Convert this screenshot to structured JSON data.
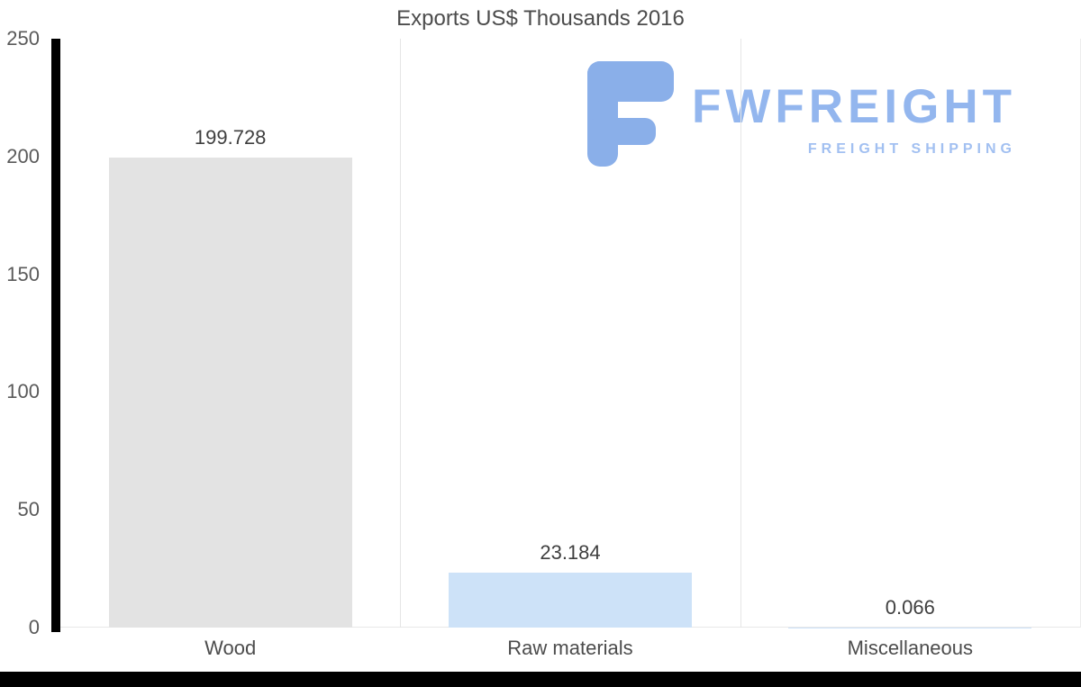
{
  "chart_data": {
    "type": "bar",
    "title": "Exports US$ Thousands 2016",
    "categories": [
      "Wood",
      "Raw materials",
      "Miscellaneous"
    ],
    "values": [
      199.728,
      23.184,
      0.066
    ],
    "value_labels": [
      "199.728",
      "23.184",
      "0.066"
    ],
    "yticks": [
      0,
      50,
      100,
      150,
      200,
      250
    ],
    "ylim": [
      0,
      250
    ],
    "xlabel": "",
    "ylabel": "",
    "grid": "vertical category separators only",
    "legend_position": "none",
    "bar_colors": [
      "#e3e3e3",
      "#cde2f8",
      "#cde2f8"
    ]
  },
  "watermark": {
    "brand": "FWFREIGHT",
    "tagline": "FREIGHT SHIPPING"
  },
  "colors": {
    "background": "#ffffff",
    "axis_line": "#000000",
    "gridline": "#e5e5e5",
    "title_text": "#4c4c4c",
    "tick_text": "#5a5a5a",
    "value_text": "#3f3f3f",
    "bar_wood": "#e3e3e3",
    "bar_blue": "#cde2f8",
    "logo_icon_blue": "#8aafe9",
    "logo_text_blue": "#93b6ee",
    "logo_tagline_blue": "#a2c0f1"
  }
}
